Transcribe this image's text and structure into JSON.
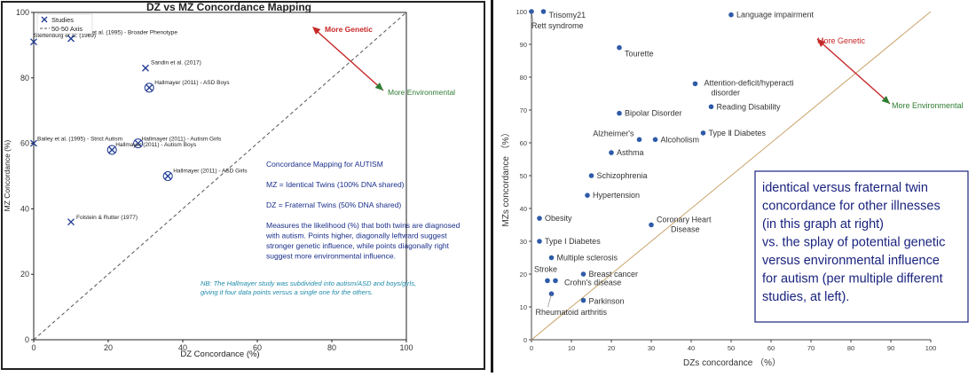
{
  "chart_data": [
    {
      "type": "scatter",
      "title": "DZ vs MZ Concordance Mapping",
      "xlabel": "DZ Concordance (%)",
      "ylabel": "MZ Concordance (%)",
      "xlim": [
        0,
        100
      ],
      "ylim": [
        0,
        100
      ],
      "xticks": [
        "0",
        "20",
        "40",
        "60",
        "80",
        "100"
      ],
      "yticks": [
        "0",
        "20",
        "40",
        "60",
        "80",
        "100"
      ],
      "grid": false,
      "legend": {
        "position": "top-left",
        "items": [
          "Studies",
          "50-50 Axis"
        ]
      },
      "marker_color": "#1f3a93",
      "series": [
        {
          "name": "Studies",
          "points": [
            {
              "x": 0,
              "y": 91,
              "label": "Steffenburg et al. (1989)",
              "marker": "x"
            },
            {
              "x": 10,
              "y": 92,
              "label": "Bailey et al. (1995) - Broader Phenotype",
              "marker": "x"
            },
            {
              "x": 30,
              "y": 83,
              "label": "Sandin et al. (2017)",
              "marker": "x"
            },
            {
              "x": 31,
              "y": 77,
              "label": "Hallmayer (2011) - ASD Boys",
              "marker": "circled-x"
            },
            {
              "x": 0,
              "y": 60,
              "label": "Bailey et al. (1995) - Strict Autism",
              "marker": "x"
            },
            {
              "x": 28,
              "y": 60,
              "label": "Hallmayer (2011) - Autism Girls",
              "marker": "circled-x"
            },
            {
              "x": 21,
              "y": 58,
              "label": "Hallmayer (2011) - Autism Boys",
              "marker": "circled-x"
            },
            {
              "x": 36,
              "y": 50,
              "label": "Hallmayer (2011) - ASD Girls",
              "marker": "circled-x"
            },
            {
              "x": 10,
              "y": 36,
              "label": "Folstein & Rutter (1977)",
              "marker": "x"
            }
          ]
        }
      ],
      "arrows": {
        "genetic": {
          "label": "More Genetic",
          "color": "#c62828"
        },
        "environmental": {
          "label": "More Environmental",
          "color": "#2e7d32"
        }
      },
      "description": [
        "Concordance Mapping for AUTISM",
        "",
        "MZ = Identical Twins (100% DNA shared)",
        "",
        "DZ = Fraternal Twins (50% DNA shared)",
        "",
        "Measures the likelihood (%) that both twins are diagnosed",
        "with autism.  Points higher, diagonally leftward suggest",
        "stronger genetic influence, while points diagonally right",
        "suggest more environmental influence."
      ],
      "note": [
        "NB: The Hallmayer study was subdivided into autism/ASD and boys/girls,",
        "giving it four  data points versus a single one for the others."
      ]
    },
    {
      "type": "scatter",
      "title": "",
      "xlabel": "DZs concordance （%）",
      "ylabel": "MZs concordance （%）",
      "xlim": [
        0,
        100
      ],
      "ylim": [
        0,
        100
      ],
      "xticks": [
        "0",
        "10",
        "20",
        "30",
        "40",
        "50",
        "60",
        "70",
        "80",
        "90",
        "100"
      ],
      "yticks": [
        "0",
        "10",
        "20",
        "30",
        "40",
        "50",
        "60",
        "70",
        "80",
        "90",
        "100"
      ],
      "grid": false,
      "marker_color": "#2e5aa8",
      "series": [
        {
          "points": [
            {
              "x": 0,
              "y": 100,
              "label": "Rett syndrome"
            },
            {
              "x": 3,
              "y": 100,
              "label": "Trisomy21"
            },
            {
              "x": 50,
              "y": 99,
              "label": "Language impairment"
            },
            {
              "x": 22,
              "y": 89,
              "label": "Tourette"
            },
            {
              "x": 41,
              "y": 78,
              "label": "Attention-deficit/hyperacti disorder"
            },
            {
              "x": 45,
              "y": 71,
              "label": "Reading Disability"
            },
            {
              "x": 22,
              "y": 69,
              "label": "Bipolar Disorder"
            },
            {
              "x": 43,
              "y": 63,
              "label": "Type Ⅱ Diabetes"
            },
            {
              "x": 27,
              "y": 61,
              "label": "Alzheimer's"
            },
            {
              "x": 31,
              "y": 61,
              "label": "Alcoholism"
            },
            {
              "x": 20,
              "y": 57,
              "label": "Asthma"
            },
            {
              "x": 15,
              "y": 50,
              "label": "Schizophrenia"
            },
            {
              "x": 14,
              "y": 44,
              "label": "Hypertension"
            },
            {
              "x": 2,
              "y": 37,
              "label": "Obesity"
            },
            {
              "x": 30,
              "y": 35,
              "label": "Coronary Heart Disease"
            },
            {
              "x": 2,
              "y": 30,
              "label": "Type Ⅰ Diabetes"
            },
            {
              "x": 5,
              "y": 25,
              "label": "Multiple sclerosis"
            },
            {
              "x": 13,
              "y": 20,
              "label": "Breast cancer"
            },
            {
              "x": 4,
              "y": 18,
              "label": "Stroke"
            },
            {
              "x": 6,
              "y": 18,
              "label": "Crohn's disease"
            },
            {
              "x": 5,
              "y": 14,
              "label": "Rheumatoid arthritis"
            },
            {
              "x": 13,
              "y": 12,
              "label": "Parkinson"
            }
          ]
        }
      ],
      "arrows": {
        "genetic": {
          "label": "More Genetic",
          "color": "#c62828"
        },
        "environmental": {
          "label": "More Environmental",
          "color": "#2e7d32"
        }
      },
      "textbox": [
        "identical versus fraternal twin",
        "concordance for other illnesses",
        "(in this graph at right)",
        "vs. the splay of potential genetic",
        "versus environmental influence",
        "for autism (per multiple different",
        "studies, at left)."
      ]
    }
  ]
}
